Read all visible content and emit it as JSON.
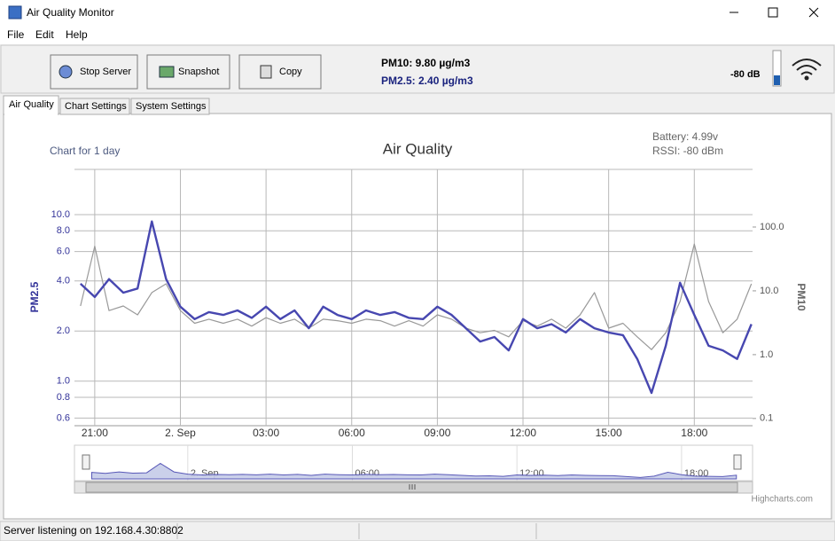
{
  "window": {
    "title": "Air Quality Monitor"
  },
  "menu": [
    "File",
    "Edit",
    "Help"
  ],
  "toolbar": {
    "buttons": [
      "Stop Server",
      "Snapshot",
      "Copy"
    ],
    "pm10": "PM10:  9.80 µg/m3",
    "pm25": "PM2.5: 2.40 µg/m3",
    "signal": "-80 dB"
  },
  "tabs": [
    "Air Quality",
    "Chart Settings",
    "System Settings"
  ],
  "status": "Server listening on 192.168.4.30:8802",
  "chart_data": {
    "type": "line",
    "title": "Air Quality",
    "subtitle": "Chart for 1 day",
    "annotations": [
      "Battery: 4.99v",
      "RSSI: -80 dBm"
    ],
    "credits": "Highcharts.com",
    "log_scale": true,
    "grid": true,
    "x": [
      20.5,
      21,
      21.5,
      22,
      22.5,
      23,
      23.5,
      24,
      24.5,
      25,
      25.5,
      26,
      26.5,
      27,
      27.5,
      28,
      28.5,
      29,
      29.5,
      30,
      30.5,
      31,
      31.5,
      32,
      32.5,
      33,
      33.5,
      34,
      34.5,
      35,
      35.5,
      36,
      36.5,
      37,
      37.5,
      38,
      38.5,
      39,
      39.5,
      40,
      40.5,
      41,
      41.5,
      42,
      42.5,
      43,
      43.5,
      44
    ],
    "xlim": [
      20.29,
      44.04
    ],
    "xticks": [
      {
        "value": 21,
        "label": "21:00"
      },
      {
        "value": 24,
        "label": "2. Sep"
      },
      {
        "value": 27,
        "label": "03:00"
      },
      {
        "value": 30,
        "label": "06:00"
      },
      {
        "value": 33,
        "label": "09:00"
      },
      {
        "value": 36,
        "label": "12:00"
      },
      {
        "value": 39,
        "label": "15:00"
      },
      {
        "value": 42,
        "label": "18:00"
      }
    ],
    "ylim": [
      0.54,
      18.7
    ],
    "yticks": [
      0.6,
      0.8,
      {
        "value": 1,
        "label": "1.0"
      },
      {
        "value": 2,
        "label": "2.0"
      },
      {
        "value": 4,
        "label": "4.0"
      },
      {
        "value": 6,
        "label": "6.0"
      },
      {
        "value": 8,
        "label": "8.0"
      },
      {
        "value": 10,
        "label": "10.0"
      }
    ],
    "y2lim": [
      0.077,
      800
    ],
    "y2ticks": [
      0.1,
      {
        "value": 1,
        "label": "1.0"
      },
      {
        "value": 10,
        "label": "10.0"
      },
      {
        "value": 100,
        "label": "100.0"
      }
    ],
    "series": [
      {
        "name": "PM2.5",
        "color": "#4747b0",
        "values": [
          3.85,
          3.2,
          4.1,
          3.4,
          3.6,
          9.1,
          4.1,
          2.8,
          2.36,
          2.6,
          2.5,
          2.66,
          2.4,
          2.8,
          2.36,
          2.66,
          2.08,
          2.8,
          2.5,
          2.36,
          2.66,
          2.5,
          2.6,
          2.4,
          2.36,
          2.8,
          2.5,
          2.08,
          1.73,
          1.84,
          1.53,
          2.36,
          2.08,
          2.2,
          1.96,
          2.36,
          2.08,
          1.96,
          1.89,
          1.36,
          0.85,
          1.63,
          3.9,
          2.5,
          1.63,
          1.53,
          1.36,
          2.2
        ]
      },
      {
        "name": "PM10",
        "color": "#999999",
        "axis": "y2",
        "values": [
          5.8,
          50,
          4.9,
          5.8,
          4.2,
          9.4,
          12.9,
          4.9,
          3.1,
          3.6,
          3.1,
          3.6,
          2.8,
          3.8,
          3.1,
          3.6,
          2.6,
          3.6,
          3.4,
          3.1,
          3.6,
          3.4,
          2.8,
          3.4,
          2.8,
          4.2,
          3.6,
          2.6,
          2.2,
          2.4,
          1.9,
          3.4,
          2.8,
          3.6,
          2.6,
          4.2,
          9.4,
          2.6,
          3.1,
          1.9,
          1.2,
          2.2,
          6.8,
          54,
          6.8,
          2.2,
          3.6,
          12.9
        ]
      }
    ]
  }
}
